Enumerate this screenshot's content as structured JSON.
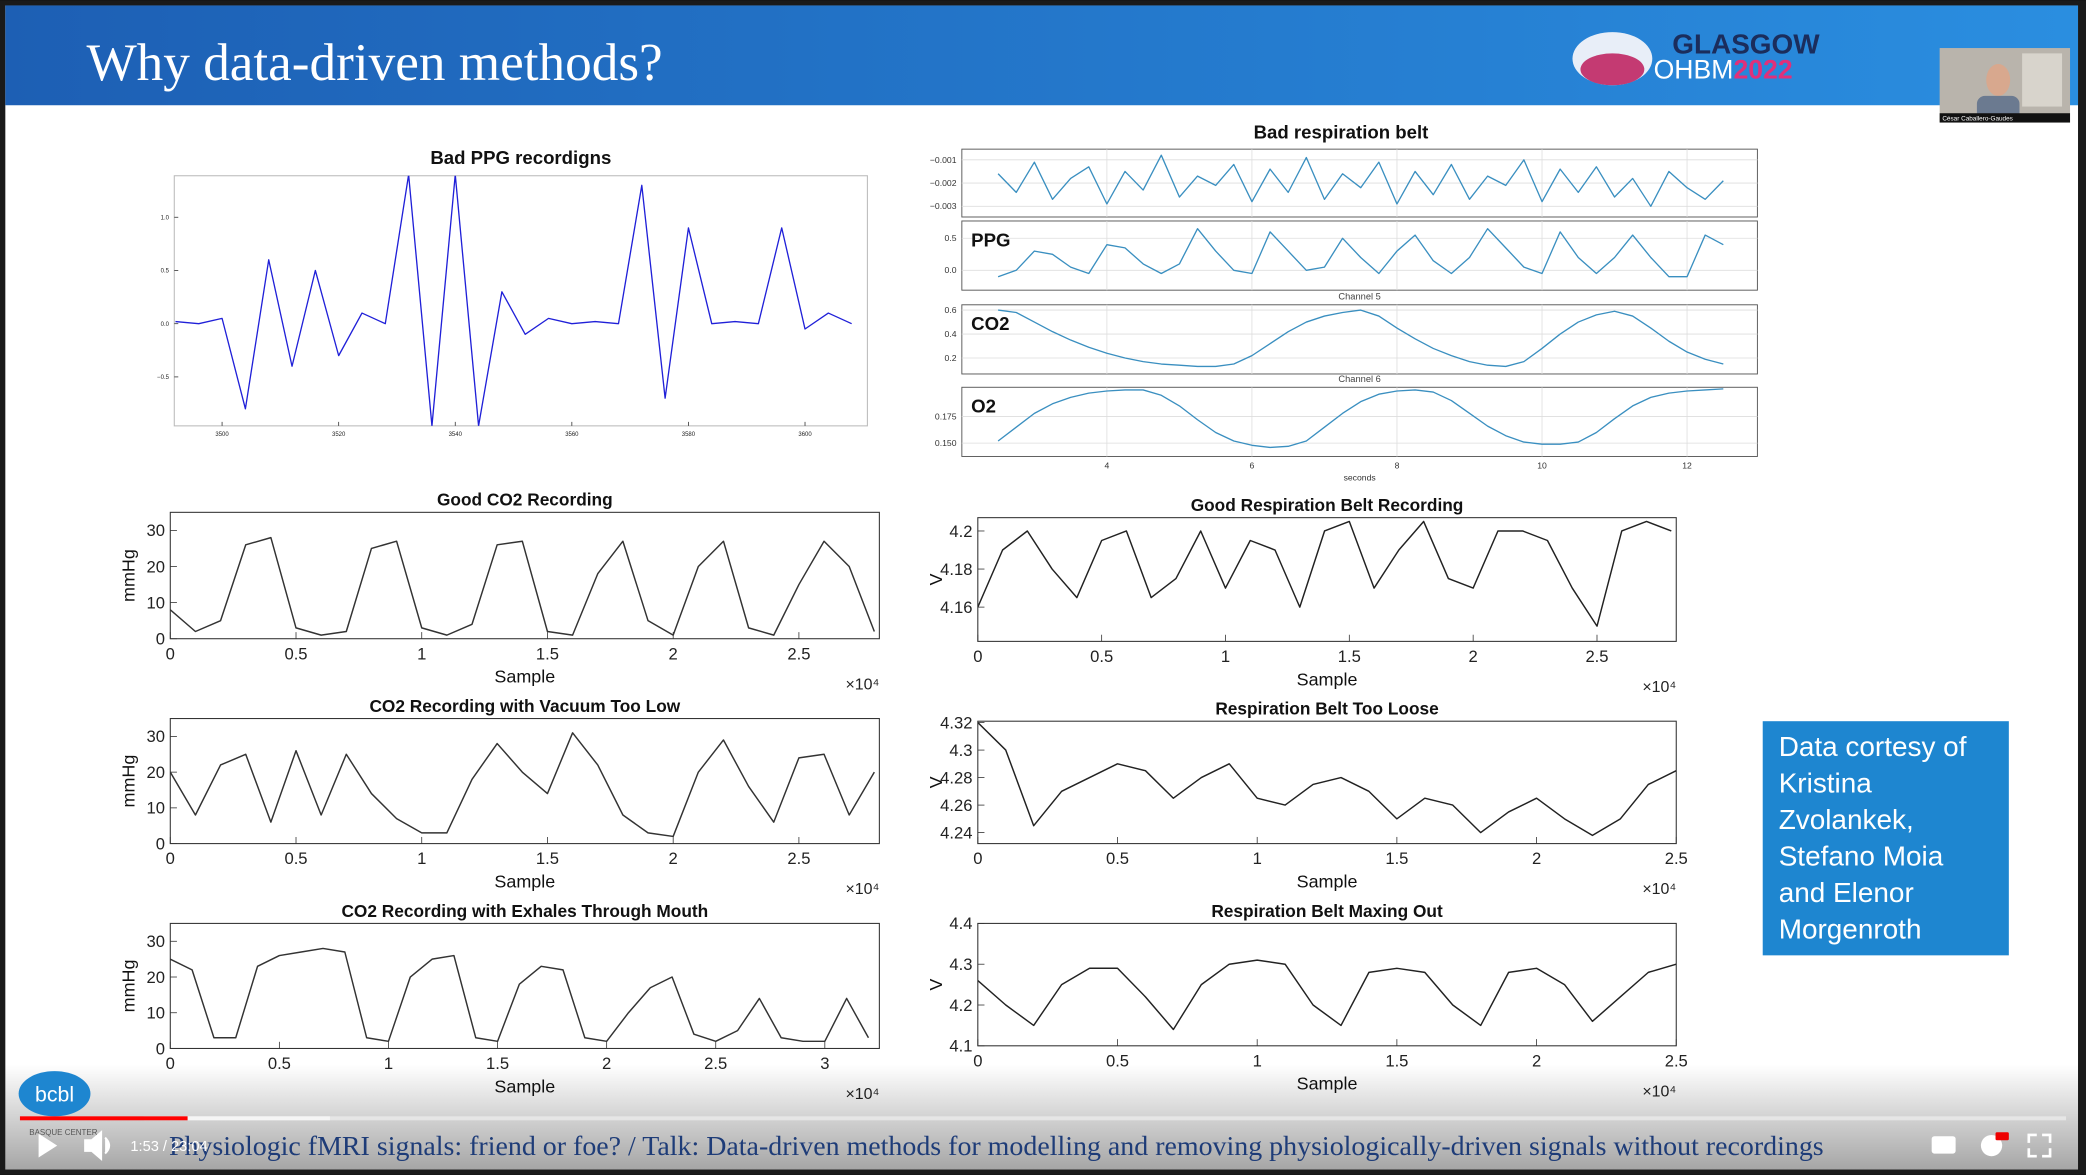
{
  "slide": {
    "title": "Why data-driven methods?",
    "logo_name": "GLASGOW",
    "logo_org": "OHBM",
    "logo_year": "2022",
    "webcam_caption": "César Caballero-Gaudes",
    "credit_lines": [
      "Data cortesy of",
      "Kristina",
      "Zvolankek,",
      "Stefano Moia",
      "and Elenor",
      "Morgenroth"
    ],
    "institute_logo": "bcbl",
    "institute_name": "BASQUE CENTER"
  },
  "player": {
    "time": "1:53 / 23:04",
    "subtitle": "Physiologic fMRI signals: friend or foe? / Talk: Data-driven methods for modelling and removing physiologically-driven signals without recordings"
  },
  "chart_data": [
    {
      "type": "line",
      "title": "Bad PPG recordigns",
      "color": "#2020d8",
      "x": [
        3492,
        3496,
        3500,
        3504,
        3508,
        3512,
        3516,
        3520,
        3524,
        3528,
        3532,
        3536,
        3540,
        3544,
        3548,
        3552,
        3556,
        3560,
        3564,
        3568,
        3572,
        3576,
        3580,
        3584,
        3588,
        3592,
        3596,
        3600,
        3604,
        3608
      ],
      "values": [
        0.02,
        0,
        0.05,
        -0.8,
        0.6,
        -0.4,
        0.5,
        -0.3,
        0.1,
        0,
        1.4,
        -0.96,
        1.4,
        -0.96,
        0.3,
        -0.1,
        0.05,
        0,
        0.02,
        0,
        1.3,
        -0.7,
        0.9,
        0,
        0.02,
        0,
        0.9,
        -0.05,
        0.1,
        0
      ],
      "xlim": [
        3491.8,
        3610.7
      ],
      "ylim": [
        -0.96,
        1.39
      ],
      "xticks": [
        3500,
        3520,
        3540,
        3560,
        3580,
        3600
      ],
      "yticks": [
        {
          "value": -0.5,
          "label": "−0.5"
        },
        {
          "value": 0,
          "label": "0.0"
        },
        0.5,
        {
          "value": 1,
          "label": "1.0"
        }
      ]
    },
    {
      "type": "multi-panel",
      "title": "Bad respiration belt",
      "color": "#3a8fc0",
      "grid": true,
      "xlabel": "seconds",
      "x": [
        2.5,
        2.75,
        3,
        3.25,
        3.5,
        3.75,
        4,
        4.25,
        4.5,
        4.75,
        5,
        5.25,
        5.5,
        5.75,
        6,
        6.25,
        6.5,
        6.75,
        7,
        7.25,
        7.5,
        7.75,
        8,
        8.25,
        8.5,
        8.75,
        9,
        9.25,
        9.5,
        9.75,
        10,
        10.25,
        10.5,
        10.75,
        11,
        11.25,
        11.5,
        11.75,
        12,
        12.25,
        12.5
      ],
      "xlim": [
        2,
        12.97
      ],
      "xticks": [
        4,
        6,
        8,
        10,
        12
      ],
      "panels": [
        {
          "ylim": [
            -0.00346,
            -0.00054
          ],
          "yticks": [
            {
              "value": -0.003,
              "label": "−0.003"
            },
            {
              "value": -0.002,
              "label": "−0.002"
            },
            {
              "value": -0.001,
              "label": "−0.001"
            }
          ],
          "values": [
            -0.0016,
            -0.0024,
            -0.0011,
            -0.0027,
            -0.0018,
            -0.0013,
            -0.0029,
            -0.0015,
            -0.0023,
            -0.0008,
            -0.0026,
            -0.0017,
            -0.0021,
            -0.0012,
            -0.0028,
            -0.0014,
            -0.0024,
            -0.0009,
            -0.0027,
            -0.0016,
            -0.0022,
            -0.0011,
            -0.0029,
            -0.0015,
            -0.0025,
            -0.0012,
            -0.0027,
            -0.0017,
            -0.0021,
            -0.001,
            -0.0028,
            -0.0014,
            -0.0024,
            -0.0013,
            -0.0026,
            -0.0018,
            -0.003,
            -0.0015,
            -0.0022,
            -0.0027,
            -0.0019
          ]
        },
        {
          "label": "PPG",
          "ylim": [
            -0.31,
            0.77
          ],
          "yticks": [
            {
              "value": 0,
              "label": "0.0"
            },
            0.5
          ],
          "values": [
            -0.1,
            0,
            0.3,
            0.25,
            0.05,
            -0.05,
            0.4,
            0.35,
            0.1,
            -0.05,
            0.1,
            0.65,
            0.3,
            0,
            -0.05,
            0.6,
            0.3,
            0,
            0.05,
            0.5,
            0.2,
            -0.05,
            0.3,
            0.55,
            0.15,
            -0.05,
            0.2,
            0.65,
            0.35,
            0.05,
            -0.05,
            0.6,
            0.2,
            -0.05,
            0.2,
            0.55,
            0.2,
            -0.1,
            -0.1,
            0.55,
            0.4
          ]
        },
        {
          "label": "CO2",
          "channel": "Channel 5",
          "ylim": [
            0.067,
            0.644
          ],
          "yticks": [
            0.2,
            0.4,
            0.6
          ],
          "values": [
            0.6,
            0.58,
            0.5,
            0.42,
            0.35,
            0.29,
            0.24,
            0.2,
            0.17,
            0.15,
            0.14,
            0.13,
            0.13,
            0.15,
            0.22,
            0.32,
            0.42,
            0.5,
            0.55,
            0.58,
            0.6,
            0.55,
            0.45,
            0.36,
            0.28,
            0.22,
            0.17,
            0.14,
            0.13,
            0.17,
            0.28,
            0.4,
            0.5,
            0.56,
            0.59,
            0.55,
            0.45,
            0.34,
            0.25,
            0.19,
            0.15
          ]
        },
        {
          "label": "O2",
          "channel": "Channel 6",
          "ylim": [
            0.1375,
            0.2025
          ],
          "yticks": [
            {
              "value": 0.15,
              "label": "0.150"
            },
            0.175
          ],
          "values": [
            0.152,
            0.165,
            0.178,
            0.187,
            0.193,
            0.197,
            0.199,
            0.2,
            0.2,
            0.195,
            0.185,
            0.172,
            0.16,
            0.152,
            0.148,
            0.146,
            0.147,
            0.152,
            0.165,
            0.178,
            0.189,
            0.196,
            0.199,
            0.2,
            0.198,
            0.19,
            0.178,
            0.166,
            0.157,
            0.151,
            0.149,
            0.149,
            0.151,
            0.16,
            0.173,
            0.185,
            0.193,
            0.197,
            0.199,
            0.2,
            0.201
          ]
        }
      ]
    },
    {
      "type": "line",
      "title": "Good CO2 Recording",
      "xlabel": "Sample",
      "ylabel": "mmHg",
      "x_multiplier": "×10⁴",
      "color": "#333333",
      "x": [
        0,
        0.1,
        0.2,
        0.3,
        0.4,
        0.5,
        0.6,
        0.7,
        0.8,
        0.9,
        1,
        1.1,
        1.2,
        1.3,
        1.4,
        1.5,
        1.6,
        1.7,
        1.8,
        1.9,
        2,
        2.1,
        2.2,
        2.3,
        2.4,
        2.5,
        2.6,
        2.7,
        2.8
      ],
      "values": [
        8,
        2,
        5,
        26,
        28,
        3,
        1,
        2,
        25,
        27,
        3,
        1,
        4,
        26,
        27,
        2,
        1,
        18,
        27,
        5,
        1,
        20,
        27,
        3,
        1,
        15,
        27,
        20,
        2
      ],
      "xlim": [
        0,
        2.82
      ],
      "ylim": [
        0,
        35
      ],
      "xticks": [
        0,
        0.5,
        1,
        1.5,
        2,
        2.5
      ],
      "yticks": [
        0,
        10,
        20,
        30
      ]
    },
    {
      "type": "line",
      "title": "CO2 Recording with Vacuum Too Low",
      "xlabel": "Sample",
      "ylabel": "mmHg",
      "x_multiplier": "×10⁴",
      "color": "#333333",
      "x": [
        0,
        0.1,
        0.2,
        0.3,
        0.4,
        0.5,
        0.6,
        0.7,
        0.8,
        0.9,
        1,
        1.1,
        1.2,
        1.3,
        1.4,
        1.5,
        1.6,
        1.7,
        1.8,
        1.9,
        2,
        2.1,
        2.2,
        2.3,
        2.4,
        2.5,
        2.6,
        2.7,
        2.8
      ],
      "values": [
        20,
        8,
        22,
        25,
        6,
        26,
        8,
        25,
        14,
        7,
        3,
        3,
        18,
        28,
        20,
        14,
        31,
        22,
        8,
        3,
        2,
        20,
        29,
        16,
        6,
        24,
        25,
        8,
        20
      ],
      "xlim": [
        0,
        2.82
      ],
      "ylim": [
        0,
        35
      ],
      "xticks": [
        0,
        0.5,
        1,
        1.5,
        2,
        2.5
      ],
      "yticks": [
        0,
        10,
        20,
        30
      ]
    },
    {
      "type": "line",
      "title": "CO2 Recording with Exhales Through Mouth",
      "xlabel": "Sample",
      "ylabel": "mmHg",
      "x_multiplier": "×10⁴",
      "color": "#333333",
      "x": [
        0,
        0.1,
        0.2,
        0.3,
        0.4,
        0.5,
        0.6,
        0.7,
        0.8,
        0.9,
        1,
        1.1,
        1.2,
        1.3,
        1.4,
        1.5,
        1.6,
        1.7,
        1.8,
        1.9,
        2,
        2.1,
        2.2,
        2.3,
        2.4,
        2.5,
        2.6,
        2.7,
        2.8,
        2.9,
        3,
        3.1,
        3.2
      ],
      "values": [
        25,
        22,
        3,
        3,
        23,
        26,
        27,
        28,
        27,
        3,
        2,
        20,
        25,
        26,
        3,
        2,
        18,
        23,
        22,
        3,
        2,
        10,
        17,
        20,
        4,
        2,
        5,
        14,
        3,
        2,
        2,
        14,
        3
      ],
      "xlim": [
        0,
        3.25
      ],
      "ylim": [
        0,
        35
      ],
      "xticks": [
        0,
        0.5,
        1,
        1.5,
        2,
        2.5,
        3
      ],
      "yticks": [
        0,
        10,
        20,
        30
      ]
    },
    {
      "type": "line",
      "title": "Good Respiration Belt Recording",
      "xlabel": "Sample",
      "ylabel": "V",
      "x_multiplier": "×10⁴",
      "color": "#222222",
      "x": [
        0,
        0.1,
        0.2,
        0.3,
        0.4,
        0.5,
        0.6,
        0.7,
        0.8,
        0.9,
        1,
        1.1,
        1.2,
        1.3,
        1.4,
        1.5,
        1.6,
        1.7,
        1.8,
        1.9,
        2,
        2.1,
        2.2,
        2.3,
        2.4,
        2.5,
        2.6,
        2.7,
        2.8
      ],
      "values": [
        4.16,
        4.19,
        4.2,
        4.18,
        4.165,
        4.195,
        4.2,
        4.165,
        4.175,
        4.2,
        4.17,
        4.195,
        4.19,
        4.16,
        4.2,
        4.205,
        4.17,
        4.19,
        4.205,
        4.175,
        4.17,
        4.2,
        4.2,
        4.195,
        4.17,
        4.15,
        4.2,
        4.205,
        4.2
      ],
      "xlim": [
        0,
        2.82
      ],
      "ylim": [
        4.142,
        4.207
      ],
      "xticks": [
        0,
        0.5,
        1,
        1.5,
        2,
        2.5
      ],
      "yticks": [
        4.16,
        4.18,
        4.2
      ]
    },
    {
      "type": "line",
      "title": "Respiration Belt Too Loose",
      "xlabel": "Sample",
      "ylabel": "V",
      "x_multiplier": "×10⁴",
      "color": "#222222",
      "x": [
        0,
        0.1,
        0.2,
        0.3,
        0.4,
        0.5,
        0.6,
        0.7,
        0.8,
        0.9,
        1,
        1.1,
        1.2,
        1.3,
        1.4,
        1.5,
        1.6,
        1.7,
        1.8,
        1.9,
        2,
        2.1,
        2.2,
        2.3,
        2.4,
        2.5
      ],
      "values": [
        4.32,
        4.3,
        4.245,
        4.27,
        4.28,
        4.29,
        4.285,
        4.265,
        4.28,
        4.29,
        4.265,
        4.26,
        4.275,
        4.28,
        4.27,
        4.25,
        4.265,
        4.26,
        4.24,
        4.255,
        4.265,
        4.25,
        4.238,
        4.25,
        4.275,
        4.285
      ],
      "xlim": [
        0,
        2.5
      ],
      "ylim": [
        4.232,
        4.321
      ],
      "xticks": [
        0,
        0.5,
        1,
        1.5,
        2,
        2.5
      ],
      "yticks": [
        4.24,
        4.26,
        4.28,
        4.3,
        4.32
      ]
    },
    {
      "type": "line",
      "title": "Respiration Belt Maxing Out",
      "xlabel": "Sample",
      "ylabel": "V",
      "x_multiplier": "×10⁴",
      "color": "#222222",
      "x": [
        0,
        0.1,
        0.2,
        0.3,
        0.4,
        0.5,
        0.6,
        0.7,
        0.8,
        0.9,
        1,
        1.1,
        1.2,
        1.3,
        1.4,
        1.5,
        1.6,
        1.7,
        1.8,
        1.9,
        2,
        2.1,
        2.2,
        2.3,
        2.4,
        2.5
      ],
      "values": [
        4.26,
        4.2,
        4.15,
        4.25,
        4.29,
        4.29,
        4.22,
        4.14,
        4.25,
        4.3,
        4.31,
        4.3,
        4.2,
        4.15,
        4.28,
        4.29,
        4.28,
        4.2,
        4.15,
        4.28,
        4.29,
        4.25,
        4.16,
        4.22,
        4.28,
        4.3
      ],
      "xlim": [
        0,
        2.5
      ],
      "ylim": [
        4.1,
        4.4
      ],
      "xticks": [
        0,
        0.5,
        1,
        1.5,
        2,
        2.5
      ],
      "yticks": [
        4.1,
        4.2,
        4.3,
        4.4
      ]
    }
  ]
}
